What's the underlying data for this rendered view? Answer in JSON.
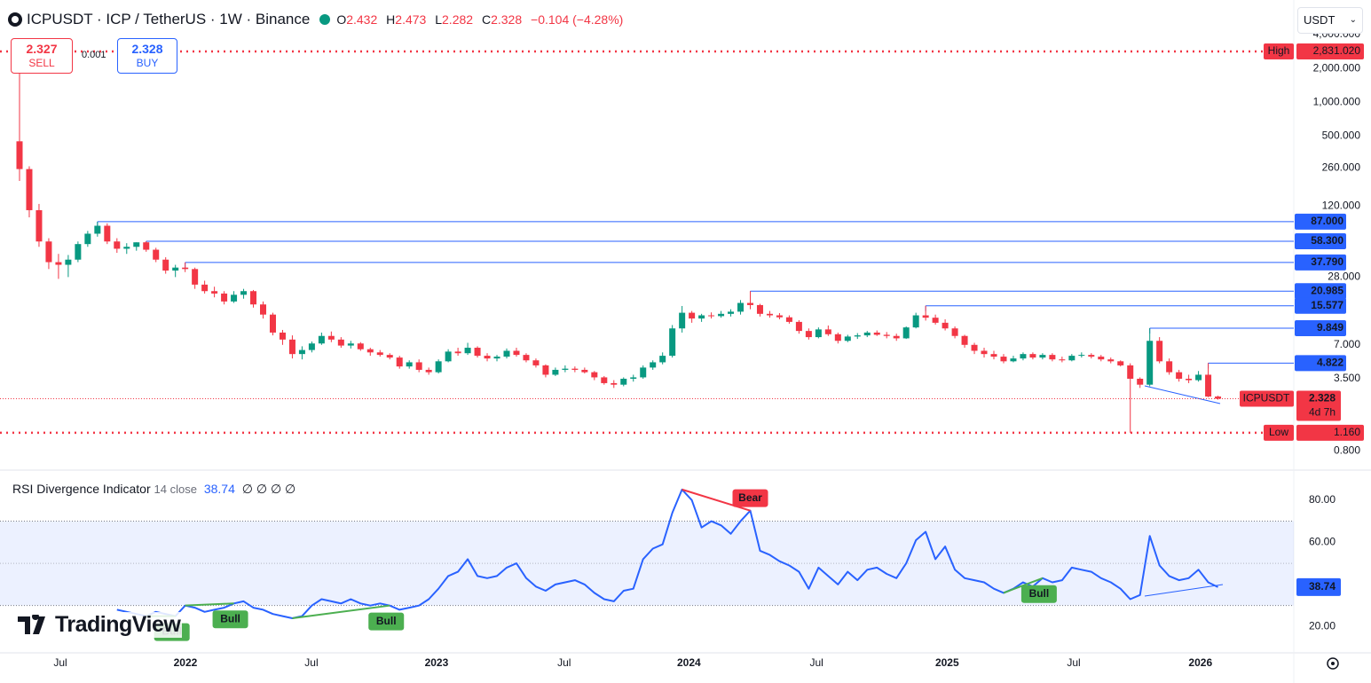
{
  "header": {
    "symbol": "ICPUSDT · ICP / TetherUS · 1W · Binance",
    "ohlc_labels": [
      "O",
      "H",
      "L",
      "C"
    ],
    "change": "−0.104",
    "change_pct": "(−4.28%)"
  },
  "order": {
    "sell": 2.327,
    "sell_label": "SELL",
    "spread": 0.001,
    "buy": 2.328,
    "buy_label": "BUY"
  },
  "currency": "USDT",
  "branding": "TradingView",
  "chart_data": [
    {
      "type": "candlestick",
      "log_scale": true,
      "up_color": "#089981",
      "down_color": "#f23645",
      "ylim": [
        0.56,
        4700
      ],
      "yticks": [
        {
          "value": 4000,
          "label": "4,000.000"
        },
        {
          "value": 2000,
          "label": "2,000.000"
        },
        {
          "value": 1000,
          "label": "1,000.000"
        },
        {
          "value": 500,
          "label": "500.000"
        },
        {
          "value": 260,
          "label": "260.000"
        },
        {
          "value": 120,
          "label": "120.000"
        },
        {
          "value": 28,
          "label": "28.000"
        },
        {
          "value": 7,
          "label": "7.000"
        },
        {
          "value": 3.5,
          "label": "3.500"
        },
        {
          "value": 0.8,
          "label": "0.800"
        }
      ],
      "xticks": [
        {
          "value": 4.19,
          "label": "Jul"
        },
        {
          "value": 17.03,
          "label": "2022"
        },
        {
          "value": 29.96,
          "label": "Jul"
        },
        {
          "value": 42.8,
          "label": "2023"
        },
        {
          "value": 55.9,
          "label": "Jul"
        },
        {
          "value": 68.7,
          "label": "2024"
        },
        {
          "value": 81.8,
          "label": "Jul"
        },
        {
          "value": 95.2,
          "label": "2025"
        },
        {
          "value": 108.2,
          "label": "Jul"
        },
        {
          "value": 121.2,
          "label": "2026"
        }
      ],
      "levels": [
        {
          "value": 87,
          "label": "87.000",
          "from": 8
        },
        {
          "value": 58.3,
          "label": "58.300",
          "from": 13
        },
        {
          "value": 37.79,
          "label": "37.790",
          "from": 17
        },
        {
          "value": 20.985,
          "label": "20.985",
          "from": 75
        },
        {
          "value": 15.577,
          "label": "15.577",
          "from": 93
        },
        {
          "value": 9.849,
          "label": "9.849",
          "from": 116
        },
        {
          "value": 4.822,
          "label": "4.822",
          "from": 122
        }
      ],
      "level_color": "#2962ff",
      "high": {
        "name": "High",
        "value": 2831.02,
        "label": "2,831.020"
      },
      "low": {
        "name": "Low",
        "value": 1.16,
        "label": "1.160"
      },
      "last": {
        "name": "ICPUSDT",
        "countdown": "4d 7h"
      },
      "ohlc": [
        [
          450,
          2831.02,
          200,
          255
        ],
        [
          255,
          270,
          95,
          110
        ],
        [
          110,
          125,
          52,
          58
        ],
        [
          58,
          62,
          33,
          38
        ],
        [
          38,
          45,
          27,
          36
        ],
        [
          36,
          44,
          28,
          40
        ],
        [
          40,
          58,
          38,
          55
        ],
        [
          55,
          72,
          52,
          68
        ],
        [
          68,
          87,
          64,
          80
        ],
        [
          80,
          84,
          55,
          58
        ],
        [
          58,
          62,
          46,
          50
        ],
        [
          50,
          56,
          45,
          52
        ],
        [
          52,
          57,
          48,
          57
        ],
        [
          57,
          58.3,
          47,
          49
        ],
        [
          49,
          51,
          38,
          40
        ],
        [
          40,
          42,
          30,
          32
        ],
        [
          32,
          36,
          28,
          34
        ],
        [
          34,
          37.79,
          31,
          33
        ],
        [
          33,
          34,
          22,
          24
        ],
        [
          24,
          26,
          20,
          21
        ],
        [
          21,
          23,
          18.5,
          20
        ],
        [
          20,
          21,
          16,
          17
        ],
        [
          17,
          21,
          16.5,
          19.5
        ],
        [
          19.5,
          22,
          18,
          21
        ],
        [
          21,
          21.5,
          15,
          16
        ],
        [
          16,
          17,
          12,
          13
        ],
        [
          13,
          13.5,
          8.5,
          9
        ],
        [
          9,
          9.5,
          7,
          7.8
        ],
        [
          7.8,
          8.5,
          5.3,
          5.8
        ],
        [
          5.8,
          6.8,
          5.2,
          6.3
        ],
        [
          6.3,
          7.5,
          6,
          7.2
        ],
        [
          7.2,
          9,
          7,
          8.4
        ],
        [
          8.4,
          9.2,
          7.4,
          7.8
        ],
        [
          7.8,
          8.2,
          6.6,
          6.9
        ],
        [
          6.9,
          7.6,
          6.5,
          7.2
        ],
        [
          7.2,
          7.4,
          6.2,
          6.4
        ],
        [
          6.4,
          6.6,
          5.6,
          6
        ],
        [
          6,
          6.3,
          5.5,
          5.7
        ],
        [
          5.7,
          5.9,
          5.2,
          5.4
        ],
        [
          5.4,
          5.6,
          4.3,
          4.5
        ],
        [
          4.5,
          5.1,
          4.3,
          4.9
        ],
        [
          4.9,
          5.2,
          4,
          4.2
        ],
        [
          4.2,
          4.4,
          3.8,
          4
        ],
        [
          4,
          5.2,
          3.9,
          5
        ],
        [
          5,
          6.4,
          4.9,
          6.1
        ],
        [
          6.1,
          6.6,
          5.6,
          5.9
        ],
        [
          5.9,
          7.3,
          5.7,
          6.6
        ],
        [
          6.6,
          6.8,
          5.4,
          5.6
        ],
        [
          5.6,
          5.9,
          5,
          5.3
        ],
        [
          5.3,
          5.7,
          5,
          5.5
        ],
        [
          5.5,
          6.5,
          5.3,
          6.2
        ],
        [
          6.2,
          6.6,
          5.5,
          5.7
        ],
        [
          5.7,
          5.9,
          4.9,
          5.1
        ],
        [
          5.1,
          5.3,
          4.4,
          4.6
        ],
        [
          4.6,
          4.7,
          3.6,
          3.8
        ],
        [
          3.8,
          4.4,
          3.7,
          4.2
        ],
        [
          4.2,
          4.6,
          4,
          4.3
        ],
        [
          4.3,
          4.5,
          4,
          4.2
        ],
        [
          4.2,
          4.4,
          3.9,
          4
        ],
        [
          4,
          4.1,
          3.4,
          3.6
        ],
        [
          3.6,
          3.7,
          3.1,
          3.2
        ],
        [
          3.2,
          3.4,
          2.9,
          3.1
        ],
        [
          3.1,
          3.6,
          3,
          3.5
        ],
        [
          3.5,
          3.8,
          3.3,
          3.6
        ],
        [
          3.6,
          4.6,
          3.5,
          4.4
        ],
        [
          4.4,
          5.1,
          4.2,
          4.9
        ],
        [
          4.9,
          6,
          4.7,
          5.6
        ],
        [
          5.6,
          10.5,
          5.4,
          9.8
        ],
        [
          9.8,
          15.5,
          9,
          13.5
        ],
        [
          13.5,
          14,
          11,
          12
        ],
        [
          12,
          13.2,
          11.2,
          12.8
        ],
        [
          12.8,
          13.6,
          12,
          12.6
        ],
        [
          12.6,
          14,
          12.2,
          13.2
        ],
        [
          13.2,
          14.5,
          12.5,
          13.8
        ],
        [
          13.8,
          17.5,
          13,
          16.5
        ],
        [
          16.5,
          20.985,
          14.5,
          15.8
        ],
        [
          15.8,
          16.2,
          12.5,
          13.2
        ],
        [
          13.2,
          14,
          12.2,
          12.8
        ],
        [
          12.8,
          13.4,
          11.8,
          12.3
        ],
        [
          12.3,
          12.8,
          10.8,
          11.2
        ],
        [
          11.2,
          11.6,
          8.8,
          9.3
        ],
        [
          9.3,
          9.8,
          7.8,
          8.2
        ],
        [
          8.2,
          10,
          8,
          9.6
        ],
        [
          9.6,
          10.4,
          8.4,
          8.7
        ],
        [
          8.7,
          9,
          7.2,
          7.6
        ],
        [
          7.6,
          8.6,
          7.4,
          8.3
        ],
        [
          8.3,
          8.9,
          7.9,
          8.5
        ],
        [
          8.5,
          9.3,
          8.2,
          9
        ],
        [
          9,
          9.4,
          8.4,
          8.6
        ],
        [
          8.6,
          9.1,
          8,
          8.4
        ],
        [
          8.4,
          8.8,
          7.6,
          8
        ],
        [
          8,
          10.2,
          7.9,
          10
        ],
        [
          10,
          13.5,
          9.8,
          12.8
        ],
        [
          12.8,
          15.577,
          11.5,
          12.2
        ],
        [
          12.2,
          13,
          10.6,
          11
        ],
        [
          11,
          11.8,
          9.4,
          9.8
        ],
        [
          9.8,
          10.2,
          8,
          8.4
        ],
        [
          8.4,
          8.6,
          6.6,
          7
        ],
        [
          7,
          7.3,
          5.8,
          6.2
        ],
        [
          6.2,
          6.6,
          5.4,
          5.8
        ],
        [
          5.8,
          6.2,
          5.2,
          5.5
        ],
        [
          5.5,
          5.8,
          4.8,
          5
        ],
        [
          5,
          5.6,
          4.9,
          5.3
        ],
        [
          5.3,
          6,
          5.1,
          5.8
        ],
        [
          5.8,
          6,
          5.2,
          5.4
        ],
        [
          5.4,
          5.9,
          5.2,
          5.7
        ],
        [
          5.7,
          5.9,
          5,
          5.2
        ],
        [
          5.2,
          5.5,
          4.9,
          5.1
        ],
        [
          5.1,
          5.8,
          5,
          5.6
        ],
        [
          5.6,
          6,
          5.4,
          5.7
        ],
        [
          5.7,
          5.9,
          5.3,
          5.5
        ],
        [
          5.5,
          5.7,
          5,
          5.2
        ],
        [
          5.2,
          5.4,
          4.8,
          5
        ],
        [
          5,
          5.1,
          4.5,
          4.6
        ],
        [
          4.6,
          4.8,
          1.16,
          3.5
        ],
        [
          3.5,
          3.6,
          2.9,
          3.1
        ],
        [
          3.1,
          9.849,
          3,
          7.6
        ],
        [
          7.6,
          8.2,
          4.8,
          5
        ],
        [
          5,
          5.3,
          3.8,
          4
        ],
        [
          4,
          4.2,
          3.3,
          3.5
        ],
        [
          3.5,
          3.8,
          3.2,
          3.4
        ],
        [
          3.4,
          4.1,
          3.3,
          3.8
        ],
        [
          3.8,
          4.822,
          2.4,
          2.432
        ],
        [
          2.432,
          2.473,
          2.282,
          2.328
        ]
      ]
    },
    {
      "type": "line",
      "title": "RSI Divergence Indicator",
      "params": "14 close",
      "placeholders": "∅ ∅ ∅ ∅",
      "color": "#2962ff",
      "ylim": [
        8,
        90
      ],
      "yticks": [
        {
          "value": 80,
          "label": "80.00"
        },
        {
          "value": 60,
          "label": "60.00"
        },
        {
          "value": 20,
          "label": "20.00"
        }
      ],
      "bands": [
        30,
        70
      ],
      "midline": 50,
      "values": [
        null,
        null,
        null,
        null,
        null,
        null,
        null,
        null,
        null,
        null,
        28,
        27,
        26,
        25,
        27,
        26,
        25,
        30,
        29,
        27,
        28,
        29,
        31,
        32,
        29,
        28,
        26,
        25,
        24,
        25,
        30,
        33,
        32,
        31,
        33,
        31,
        30,
        31,
        30,
        28,
        29,
        30,
        33,
        38,
        44,
        46,
        52,
        44,
        43,
        44,
        48,
        50,
        43,
        39,
        37,
        40,
        41,
        42,
        40,
        36,
        33,
        32,
        37,
        38,
        52,
        57,
        59,
        74,
        85,
        80,
        67,
        70,
        68,
        64,
        70,
        75,
        56,
        54,
        51,
        49,
        46,
        38,
        48,
        44,
        40,
        46,
        42,
        47,
        48,
        45,
        43,
        50,
        61,
        65,
        52,
        58,
        47,
        43,
        42,
        41,
        38,
        36,
        38,
        41,
        39,
        43,
        41,
        42,
        48,
        47,
        46,
        43,
        41,
        38,
        33,
        35,
        63,
        49,
        44,
        42,
        43,
        47,
        41,
        38.74
      ],
      "divergences": [
        {
          "label": "Bull",
          "from": 13,
          "to": 16,
          "color": "#4caf50"
        },
        {
          "label": "Bull",
          "from": 17,
          "to": 22,
          "color": "#4caf50"
        },
        {
          "label": "Bull",
          "from": 28,
          "to": 38,
          "color": "#4caf50"
        },
        {
          "label": "Bear",
          "from": 68,
          "to": 75,
          "color": "#f23645"
        },
        {
          "label": "Bull",
          "from": 101,
          "to": 105,
          "color": "#4caf50"
        }
      ]
    }
  ]
}
